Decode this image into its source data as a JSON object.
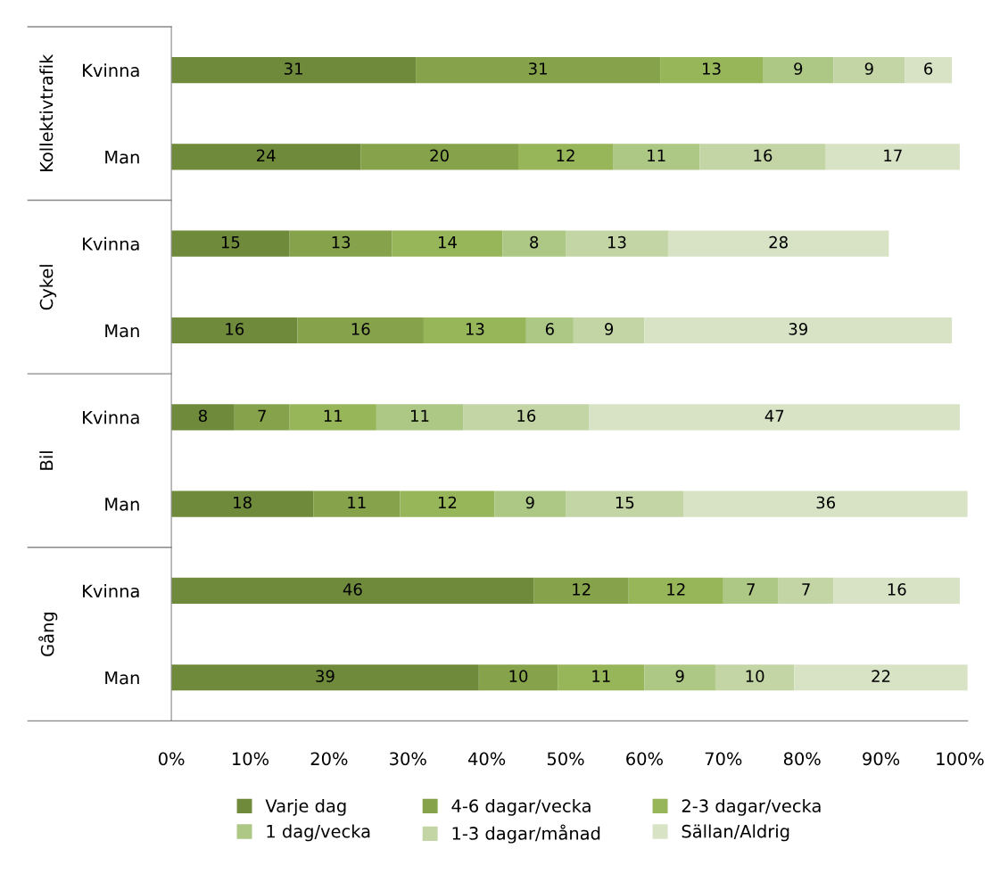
{
  "chart_data": {
    "type": "bar",
    "orientation": "horizontal",
    "stacked": true,
    "data_labels": true,
    "categories": [
      "Kvinna",
      "Man",
      "Kvinna",
      "Man",
      "Kvinna",
      "Man",
      "Kvinna",
      "Man"
    ],
    "series": [
      {
        "name": "Varje dag",
        "color": "#6f8a3b",
        "values": [
          31,
          24,
          15,
          16,
          8,
          18,
          46,
          39
        ]
      },
      {
        "name": "4-6 dagar/vecka",
        "color": "#86a34b",
        "values": [
          31,
          20,
          13,
          16,
          7,
          11,
          12,
          10
        ]
      },
      {
        "name": "2-3 dagar/vecka",
        "color": "#97b559",
        "values": [
          13,
          12,
          14,
          13,
          11,
          12,
          12,
          11
        ]
      },
      {
        "name": "1 dag/vecka",
        "color": "#adc785",
        "values": [
          9,
          11,
          8,
          6,
          11,
          9,
          7,
          9
        ]
      },
      {
        "name": "1-3 dagar/månad",
        "color": "#c3d5a5",
        "values": [
          9,
          16,
          13,
          9,
          16,
          15,
          7,
          10
        ]
      },
      {
        "name": "Sällan/Aldrig",
        "color": "#d8e3c6",
        "values": [
          6,
          17,
          28,
          39,
          47,
          36,
          16,
          22
        ]
      }
    ],
    "annotations": [
      "Kollektivtrafik",
      "Cykel",
      "Bil",
      "Gång"
    ],
    "xlim": [
      0,
      101
    ],
    "xticks": [
      {
        "value": 0,
        "label": "0%"
      },
      {
        "value": 10,
        "label": "10%"
      },
      {
        "value": 20,
        "label": "20%"
      },
      {
        "value": 30,
        "label": "30%"
      },
      {
        "value": 40,
        "label": "40%"
      },
      {
        "value": 50,
        "label": "50%"
      },
      {
        "value": 60,
        "label": "60%"
      },
      {
        "value": 70,
        "label": "70%"
      },
      {
        "value": 80,
        "label": "80%"
      },
      {
        "value": 90,
        "label": "90%"
      },
      {
        "value": 100,
        "label": "100%"
      }
    ],
    "grid": false,
    "legend": "bottom"
  }
}
